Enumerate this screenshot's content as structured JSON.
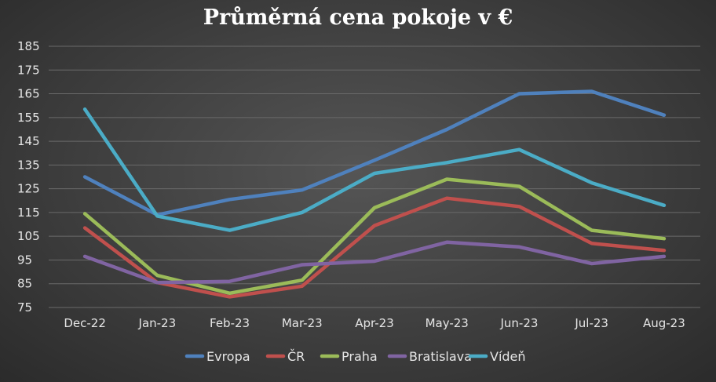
{
  "chart_data": {
    "type": "line",
    "title": "Průměrná cena pokoje v €",
    "xlabel": "",
    "ylabel": "",
    "ylim": [
      75,
      185
    ],
    "yticks": [
      75,
      85,
      95,
      105,
      115,
      125,
      135,
      145,
      155,
      165,
      175,
      185
    ],
    "grid": true,
    "legend_position": "bottom",
    "categories": [
      "Dec-22",
      "Jan-23",
      "Feb-23",
      "Mar-23",
      "Apr-23",
      "May-23",
      "Jun-23",
      "Jul-23",
      "Aug-23"
    ],
    "series": [
      {
        "name": "Evropa",
        "color": "#4f81bd",
        "values": [
          130,
          114,
          120.5,
          124.5,
          137,
          150,
          165,
          166,
          156
        ]
      },
      {
        "name": "ČR",
        "color": "#c0504d",
        "values": [
          108.5,
          85.5,
          79.5,
          84,
          109.5,
          121,
          117.5,
          102,
          99
        ]
      },
      {
        "name": "Praha",
        "color": "#9bbb59",
        "values": [
          114.5,
          88.5,
          81,
          86.5,
          117,
          129,
          126,
          107.5,
          104
        ]
      },
      {
        "name": "Bratislava",
        "color": "#8064a2",
        "values": [
          96.5,
          85.5,
          86,
          93,
          94.5,
          102.5,
          100.5,
          93.5,
          96.5
        ]
      },
      {
        "name": "Vídeň",
        "color": "#4bacc6",
        "values": [
          158.5,
          113.5,
          107.5,
          115,
          131.5,
          136,
          141.5,
          127.5,
          118
        ]
      }
    ]
  }
}
